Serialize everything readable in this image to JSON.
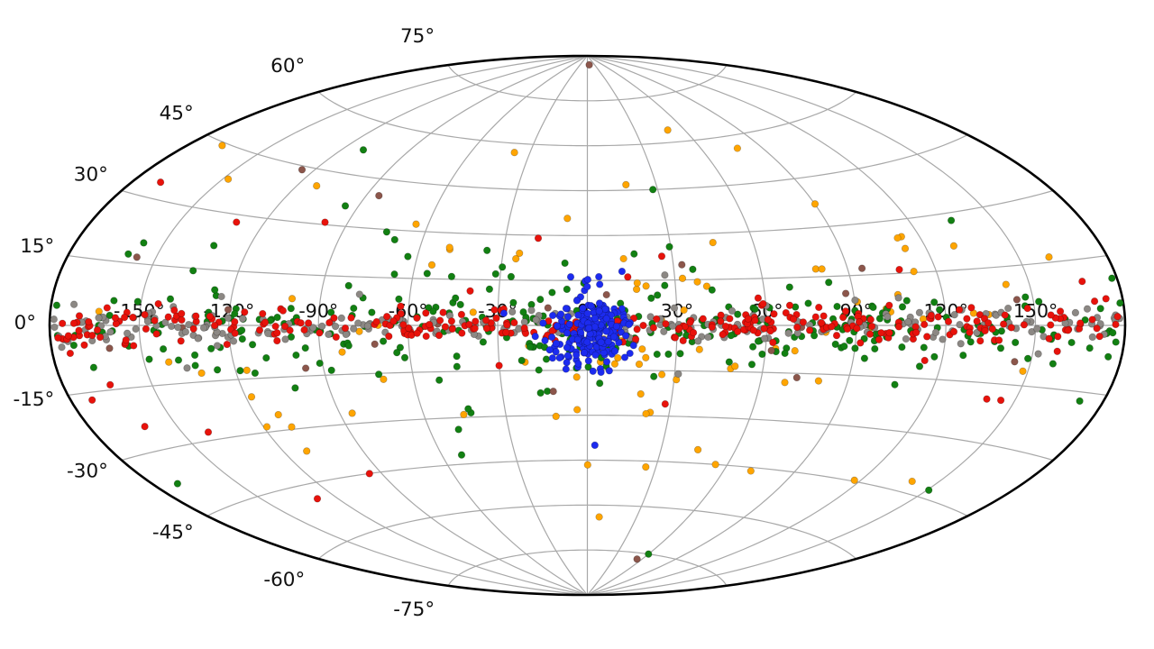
{
  "figure": {
    "background": "#ffffff",
    "title": ""
  },
  "chart_data": {
    "type": "scatter",
    "projection": "aitoff",
    "coordinate_system": "galactic all-sky map",
    "title": "",
    "xlabel": "",
    "ylabel": "",
    "grid": true,
    "legend": "none",
    "background_color": "#ffffff",
    "outline_color": "#000000",
    "grid_color": "#a8a8a8",
    "label_color": "#111111",
    "lon_range_deg": [
      -180,
      180
    ],
    "lat_range_deg": [
      -90,
      90
    ],
    "lon_gridline_step_deg": 30,
    "lat_gridline_step_deg": 15,
    "lon_gridlines_deg": [
      -150,
      -120,
      -90,
      -60,
      -30,
      0,
      30,
      60,
      90,
      120,
      150
    ],
    "lat_gridlines_deg": [
      -75,
      -60,
      -45,
      -30,
      -15,
      0,
      15,
      30,
      45,
      60,
      75
    ],
    "lon_tick_labels": [
      {
        "value": -150,
        "label": "-150°"
      },
      {
        "value": -120,
        "label": "-120°"
      },
      {
        "value": -90,
        "label": "-90°"
      },
      {
        "value": -60,
        "label": "-60°"
      },
      {
        "value": -30,
        "label": "-30°"
      },
      {
        "value": 0,
        "label": "0°"
      },
      {
        "value": 30,
        "label": "30°"
      },
      {
        "value": 60,
        "label": "60°"
      },
      {
        "value": 90,
        "label": "90°"
      },
      {
        "value": 120,
        "label": "120°"
      },
      {
        "value": 150,
        "label": "150°"
      }
    ],
    "lat_tick_labels": [
      {
        "value": 75,
        "label": "75°"
      },
      {
        "value": 60,
        "label": "60°"
      },
      {
        "value": 45,
        "label": "45°"
      },
      {
        "value": 30,
        "label": "30°"
      },
      {
        "value": 15,
        "label": "15°"
      },
      {
        "value": 0,
        "label": "0°"
      },
      {
        "value": -15,
        "label": "-15°"
      },
      {
        "value": -30,
        "label": "-30°"
      },
      {
        "value": -45,
        "label": "-45°"
      },
      {
        "value": -60,
        "label": "-60°"
      },
      {
        "value": -75,
        "label": "-75°"
      }
    ],
    "marker_radius_px": 3.8,
    "seed": 7,
    "series": [
      {
        "name": "orange-sources",
        "color": "#FFA500",
        "description": "sparse population scattered to mid and high latitudes",
        "components": [
          {
            "n": 68,
            "lon": {
              "dist": "uniform",
              "min": -172,
              "max": 172
            },
            "lat": {
              "dist": "normal",
              "mu": 0,
              "sigma": 19
            }
          },
          {
            "n": 20,
            "lon": {
              "dist": "normal",
              "mu": 15,
              "sigma": 60
            },
            "lat": {
              "dist": "normal",
              "mu": -3,
              "sigma": 27
            }
          }
        ],
        "outliers_lonlat": [
          [
            50,
            64
          ],
          [
            78,
            56
          ],
          [
            -38,
            57
          ],
          [
            -148,
            38
          ],
          [
            140,
            -42
          ],
          [
            55,
            -45
          ],
          [
            112,
            25
          ],
          [
            -118,
            -20
          ]
        ]
      },
      {
        "name": "green-sources",
        "color": "#128012",
        "description": "dense along galactic plane with wide latitude spread",
        "components": [
          {
            "n": 250,
            "lon": {
              "dist": "uniform",
              "min": -179,
              "max": 179
            },
            "lat": {
              "dist": "normal",
              "mu": -1,
              "sigma": 5.5
            }
          },
          {
            "n": 45,
            "lon": {
              "dist": "normal",
              "mu": 0,
              "sigma": 55
            },
            "lat": {
              "dist": "normal",
              "mu": 0,
              "sigma": 13
            }
          },
          {
            "n": 22,
            "lon": {
              "dist": "uniform",
              "min": -175,
              "max": 175
            },
            "lat": {
              "dist": "normal",
              "mu": 0,
              "sigma": 19
            }
          }
        ],
        "outliers_lonlat": [
          [
            -95,
            36
          ],
          [
            -70,
            27
          ],
          [
            135,
            28
          ],
          [
            60,
            -75
          ],
          [
            -52,
            -42
          ],
          [
            172,
            -17
          ],
          [
            -160,
            17
          ],
          [
            -157,
            20
          ],
          [
            28,
            45
          ]
        ]
      },
      {
        "name": "brown-sources",
        "color": "#8c564b",
        "description": "few scattered sources, including one near north galactic pole",
        "components": [
          {
            "n": 16,
            "lon": {
              "dist": "uniform",
              "min": -170,
              "max": 170
            },
            "lat": {
              "dist": "normal",
              "mu": 0,
              "sigma": 13
            }
          }
        ],
        "outliers_lonlat": [
          [
            8,
            87
          ],
          [
            -125,
            44
          ],
          [
            33,
            20
          ],
          [
            95,
            17
          ],
          [
            -12,
            -22
          ],
          [
            55,
            -77
          ],
          [
            -85,
            40
          ],
          [
            62,
            -8
          ]
        ]
      },
      {
        "name": "gray-sources",
        "color": "#8c8884",
        "description": "tightly concentrated along the galactic plane at all longitudes",
        "components": [
          {
            "n": 235,
            "lon": {
              "dist": "uniform",
              "min": -179,
              "max": 179
            },
            "lat": {
              "dist": "normal",
              "mu": 0,
              "sigma": 2.1
            }
          },
          {
            "n": 14,
            "lon": {
              "dist": "uniform",
              "min": -170,
              "max": 170
            },
            "lat": {
              "dist": "normal",
              "mu": 0,
              "sigma": 13
            }
          }
        ],
        "outliers_lonlat": []
      },
      {
        "name": "red-sources",
        "color": "#e8120b",
        "description": "tightly concentrated along the galactic plane at all longitudes",
        "components": [
          {
            "n": 300,
            "lon": {
              "dist": "uniform",
              "min": -179,
              "max": 179
            },
            "lat": {
              "dist": "normal",
              "mu": 0,
              "sigma": 2.5
            }
          },
          {
            "n": 30,
            "lon": {
              "dist": "uniform",
              "min": -175,
              "max": 175
            },
            "lat": {
              "dist": "normal",
              "mu": 0,
              "sigma": 16
            }
          }
        ],
        "outliers_lonlat": [
          [
            -95,
            -45
          ],
          [
            28,
            -26
          ],
          [
            -18,
            29
          ],
          [
            -130,
            28
          ],
          [
            168,
            10
          ]
        ]
      },
      {
        "name": "blue-sources",
        "color": "#1c2bef",
        "description": "dense cluster around the galactic center",
        "components": [
          {
            "n": 185,
            "lon": {
              "dist": "normal",
              "mu": 0,
              "sigma": 6.5
            },
            "lat": {
              "dist": "normal",
              "mu": -3,
              "sigma": 5.5
            }
          },
          {
            "n": 22,
            "lon": {
              "dist": "normal",
              "mu": 1,
              "sigma": 2.5
            },
            "lat": {
              "dist": "normal",
              "mu": 6,
              "sigma": 8
            }
          }
        ],
        "outliers_lonlat": [
          [
            3,
            -40
          ],
          [
            -28,
            4
          ],
          [
            12,
            18
          ]
        ]
      }
    ]
  }
}
